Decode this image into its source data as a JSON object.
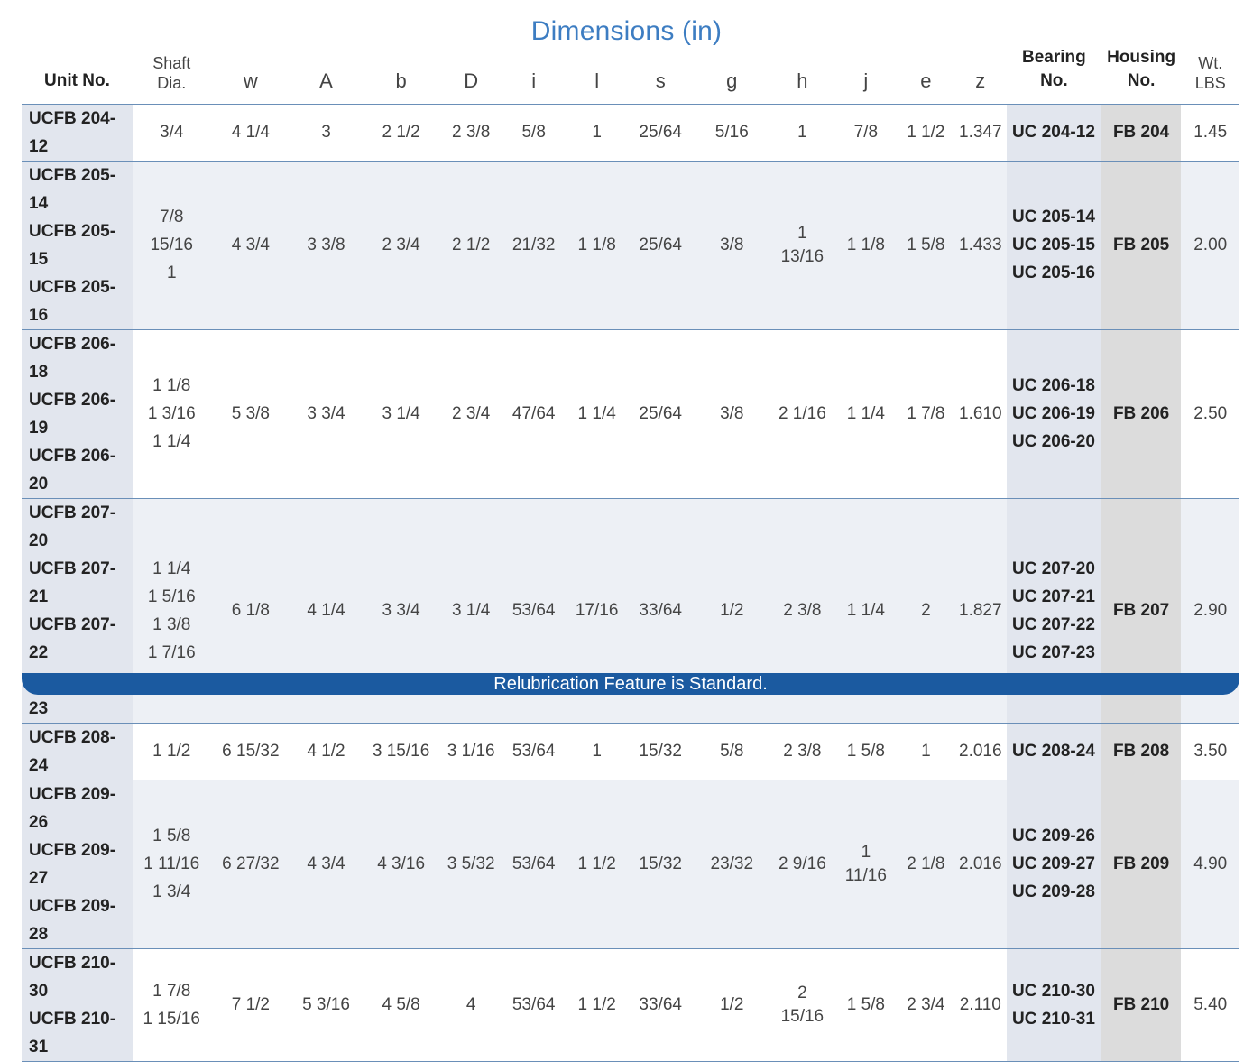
{
  "title": "Dimensions (in)",
  "footer": "Relubrication Feature is Standard.",
  "headers": {
    "unit": "Unit No.",
    "shaft_1": "Shaft",
    "shaft_2": "Dia.",
    "w": "w",
    "A": "A",
    "b": "b",
    "D": "D",
    "i": "i",
    "l": "l",
    "s": "s",
    "g": "g",
    "h": "h",
    "j": "j",
    "e": "e",
    "z": "z",
    "bearing_1": "Bearing",
    "bearing_2": "No.",
    "housing_1": "Housing",
    "housing_2": "No.",
    "wt_1": "Wt.",
    "wt_2": "LBS"
  },
  "rows": [
    {
      "units": [
        "UCFB 204-12"
      ],
      "shaft": [
        "3/4"
      ],
      "w": "4 1/4",
      "A": "3",
      "b": "2 1/2",
      "D": "2 3/8",
      "i": "5/8",
      "l": "1",
      "s": "25/64",
      "g": "5/16",
      "h": [
        "1"
      ],
      "j": [
        "7/8"
      ],
      "e": "1 1/2",
      "z": "1.347",
      "bearings": [
        "UC 204-12"
      ],
      "housing": "FB 204",
      "wt": "1.45"
    },
    {
      "units": [
        "UCFB 205-14",
        "UCFB 205-15",
        "UCFB 205-16"
      ],
      "shaft": [
        "7/8",
        "15/16",
        "1"
      ],
      "w": "4 3/4",
      "A": "3 3/8",
      "b": "2 3/4",
      "D": "2 1/2",
      "i": "21/32",
      "l": "1 1/8",
      "s": "25/64",
      "g": "3/8",
      "h": [
        "1",
        "13/16"
      ],
      "j": [
        "1 1/8"
      ],
      "e": "1 5/8",
      "z": "1.433",
      "bearings": [
        "UC 205-14",
        "UC 205-15",
        "UC 205-16"
      ],
      "housing": "FB 205",
      "wt": "2.00"
    },
    {
      "units": [
        "UCFB 206-18",
        "UCFB 206-19",
        "UCFB 206-20"
      ],
      "shaft": [
        "1 1/8",
        "1 3/16",
        "1 1/4"
      ],
      "w": "5 3/8",
      "A": "3 3/4",
      "b": "3 1/4",
      "D": "2 3/4",
      "i": "47/64",
      "l": "1 1/4",
      "s": "25/64",
      "g": "3/8",
      "h": [
        "2 1/16"
      ],
      "j": [
        "1 1/4"
      ],
      "e": "1 7/8",
      "z": "1.610",
      "bearings": [
        "UC 206-18",
        "UC 206-19",
        "UC 206-20"
      ],
      "housing": "FB 206",
      "wt": "2.50"
    },
    {
      "units": [
        "UCFB 207-20",
        "UCFB 207-21",
        "UCFB 207-22",
        "UCFB 207-23"
      ],
      "shaft": [
        "1 1/4",
        "1 5/16",
        "1 3/8",
        "1 7/16"
      ],
      "w": "6 1/8",
      "A": "4 1/4",
      "b": "3 3/4",
      "D": "3 1/4",
      "i": "53/64",
      "l": "17/16",
      "s": "33/64",
      "g": "1/2",
      "h": [
        "2 3/8"
      ],
      "j": [
        "1 1/4"
      ],
      "e": "2",
      "z": "1.827",
      "bearings": [
        "UC 207-20",
        "UC 207-21",
        "UC 207-22",
        "UC 207-23"
      ],
      "housing": "FB 207",
      "wt": "2.90"
    },
    {
      "units": [
        "UCFB 208-24"
      ],
      "shaft": [
        "1 1/2"
      ],
      "w": "6 15/32",
      "A": "4 1/2",
      "b": "3 15/16",
      "D": "3 1/16",
      "i": "53/64",
      "l": "1",
      "s": "15/32",
      "g": "5/8",
      "h": [
        "2 3/8"
      ],
      "j": [
        "1 5/8"
      ],
      "e": "1",
      "z": "2.016",
      "bearings": [
        "UC 208-24"
      ],
      "housing": "FB 208",
      "wt": "3.50"
    },
    {
      "units": [
        "UCFB 209-26",
        "UCFB 209-27",
        "UCFB 209-28"
      ],
      "shaft": [
        "1 5/8",
        "1 11/16",
        "1 3/4"
      ],
      "w": "6 27/32",
      "A": "4 3/4",
      "b": "4 3/16",
      "D": "3 5/32",
      "i": "53/64",
      "l": "1 1/2",
      "s": "15/32",
      "g": "23/32",
      "h": [
        "2 9/16"
      ],
      "j": [
        "1",
        "11/16"
      ],
      "e": "2 1/8",
      "z": "2.016",
      "bearings": [
        "UC 209-26",
        "UC 209-27",
        "UC 209-28"
      ],
      "housing": "FB 209",
      "wt": "4.90"
    },
    {
      "units": [
        "UCFB 210-30",
        "UCFB 210-31"
      ],
      "shaft": [
        "1 7/8",
        "1 15/16"
      ],
      "w": "7 1/2",
      "A": "5 3/16",
      "b": "4 5/8",
      "D": "4",
      "i": "53/64",
      "l": "1 1/2",
      "s": "33/64",
      "g": "1/2",
      "h": [
        "2",
        "15/16"
      ],
      "j": [
        "1 5/8"
      ],
      "e": "2 3/4",
      "z": "2.110",
      "bearings": [
        "UC 210-30",
        "UC 210-31"
      ],
      "housing": "FB 210",
      "wt": "5.40"
    }
  ]
}
